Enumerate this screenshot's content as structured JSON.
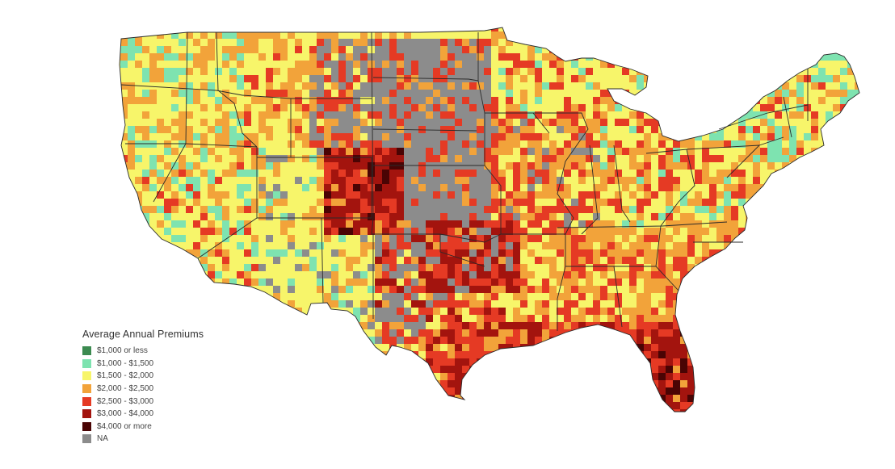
{
  "legend": {
    "title": "Average Annual Premiums",
    "items": [
      {
        "label": "$1,000 or less",
        "color": "#3c8a50"
      },
      {
        "label": "$1,000 - $1,500",
        "color": "#7ee3b0"
      },
      {
        "label": "$1,500 - $2,000",
        "color": "#f7f56a"
      },
      {
        "label": "$2,000 - $2,500",
        "color": "#f2a33a"
      },
      {
        "label": "$2,500 - $3,000",
        "color": "#e53a24"
      },
      {
        "label": "$3,000 - $4,000",
        "color": "#a3140e"
      },
      {
        "label": "$4,000 or more",
        "color": "#4a0404"
      },
      {
        "label": "NA",
        "color": "#8c8c8c"
      }
    ]
  },
  "colors": {
    "border": "#2a2a2a",
    "background": "#ffffff"
  }
}
